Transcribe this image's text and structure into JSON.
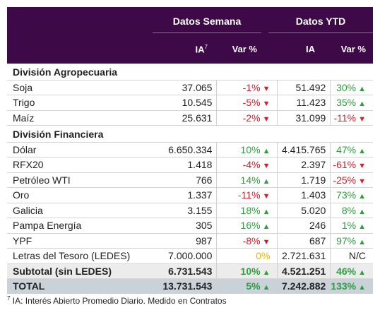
{
  "header": {
    "group1": "Datos Semana",
    "group2": "Datos YTD",
    "col_ia": "IA",
    "col_ia_sup": "7",
    "col_var": "Var %",
    "col_ia2": "IA",
    "col_var2": "Var %"
  },
  "colors": {
    "header_bg": "#3d0a47",
    "positive": "#2e9e3e",
    "negative": "#d0202f",
    "neutral": "#e3b800"
  },
  "sections": [
    {
      "title": "División Agropecuaria",
      "rows": [
        {
          "label": "Soja",
          "ia": "37.065",
          "var": "-1%",
          "var_dir": "down",
          "ytd_ia": "51.492",
          "ytd_var": "30%",
          "ytd_dir": "up"
        },
        {
          "label": "Trigo",
          "ia": "10.545",
          "var": "-5%",
          "var_dir": "down",
          "ytd_ia": "11.423",
          "ytd_var": "35%",
          "ytd_dir": "up"
        },
        {
          "label": "Maíz",
          "ia": "25.631",
          "var": "-2%",
          "var_dir": "down",
          "ytd_ia": "31.099",
          "ytd_var": "-11%",
          "ytd_dir": "down"
        }
      ]
    },
    {
      "title": "División Financiera",
      "rows": [
        {
          "label": "Dólar",
          "ia": "6.650.334",
          "var": "10%",
          "var_dir": "up",
          "ytd_ia": "4.415.765",
          "ytd_var": "47%",
          "ytd_dir": "up"
        },
        {
          "label": "RFX20",
          "ia": "1.418",
          "var": "-4%",
          "var_dir": "down",
          "ytd_ia": "2.397",
          "ytd_var": "-61%",
          "ytd_dir": "down"
        },
        {
          "label": "Petróleo WTI",
          "ia": "766",
          "var": "14%",
          "var_dir": "up",
          "ytd_ia": "1.719",
          "ytd_var": "-25%",
          "ytd_dir": "down"
        },
        {
          "label": "Oro",
          "ia": "1.337",
          "var": "-11%",
          "var_dir": "down",
          "ytd_ia": "1.403",
          "ytd_var": "73%",
          "ytd_dir": "up"
        },
        {
          "label": "Galicia",
          "ia": "3.155",
          "var": "18%",
          "var_dir": "up",
          "ytd_ia": "5.020",
          "ytd_var": "8%",
          "ytd_dir": "up"
        },
        {
          "label": "Pampa Energía",
          "ia": "305",
          "var": "16%",
          "var_dir": "up",
          "ytd_ia": "246",
          "ytd_var": "1%",
          "ytd_dir": "up"
        },
        {
          "label": "YPF",
          "ia": "987",
          "var": "-8%",
          "var_dir": "down",
          "ytd_ia": "687",
          "ytd_var": "97%",
          "ytd_dir": "up"
        },
        {
          "label": "Letras del Tesoro (LEDES)",
          "ia": "7.000.000",
          "var": "0%",
          "var_dir": "none",
          "ytd_ia": "2.721.631",
          "ytd_var": "N/C",
          "ytd_dir": "nc"
        }
      ]
    }
  ],
  "subtotal": {
    "label": "Subtotal (sin LEDES)",
    "ia": "6.731.543",
    "var": "10%",
    "var_dir": "up",
    "ytd_ia": "4.521.251",
    "ytd_var": "46%",
    "ytd_dir": "up"
  },
  "total": {
    "label": "TOTAL",
    "ia": "13.731.543",
    "var": "5%",
    "var_dir": "up",
    "ytd_ia": "7.242.882",
    "ytd_var": "133%",
    "ytd_dir": "up"
  },
  "footnote": {
    "sup": "7",
    "text": " IA: Interés Abierto Promedio Diario. Medido en Contratos"
  }
}
